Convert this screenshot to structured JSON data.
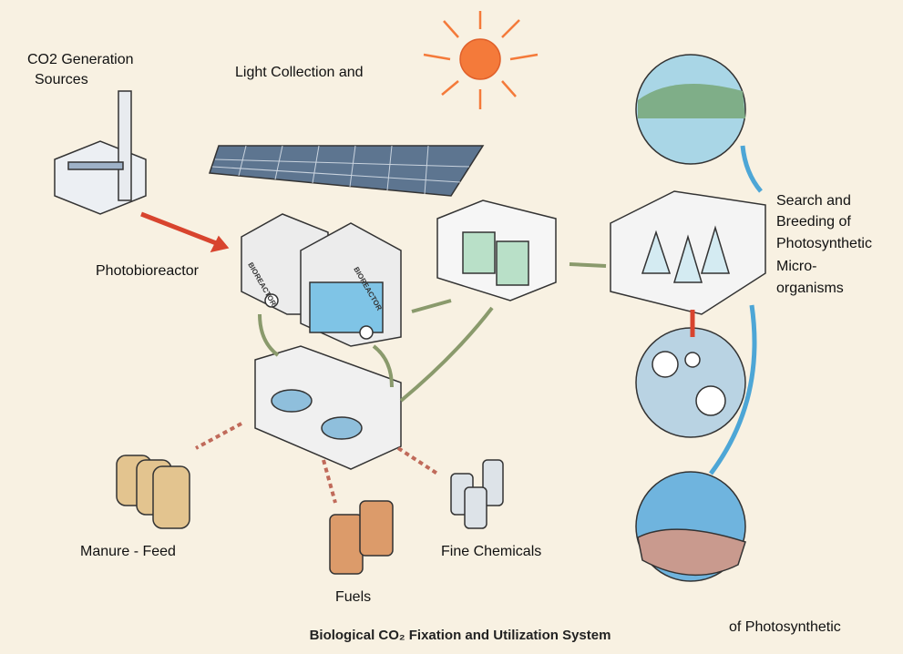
{
  "title": "Biological CO₂ Fixation and Utilization System",
  "nodes": [
    {
      "lines": [
        "CO2 Generation",
        "Sources"
      ]
    },
    {
      "lines": [
        "Light Collection and"
      ]
    },
    {
      "lines": [
        "Photobioreactor"
      ]
    },
    {
      "lines": [
        "Search and",
        "Breeding of",
        "Photosynthetic",
        "Micro-",
        "organisms"
      ]
    },
    {
      "lines": [
        "Manure - Feed"
      ]
    },
    {
      "lines": [
        "Fuels"
      ]
    },
    {
      "lines": [
        "Fine Chemicals"
      ]
    },
    {
      "lines": [
        "of Photosynthetic"
      ]
    }
  ],
  "reactor_labels": [
    "BIOREACTOR",
    "BIOREACTOR"
  ]
}
